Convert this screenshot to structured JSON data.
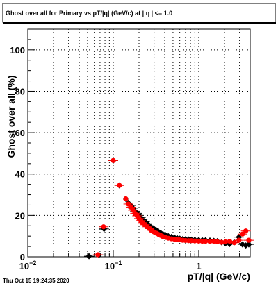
{
  "footer": {
    "timestamp": "Thu Oct 15 19:24:35 2020"
  },
  "chart_data": {
    "type": "scatter",
    "title": "Ghost over all for Primary vs pT/|q| (GeV/c) at |  η | <= 1.0",
    "xlabel": "pT/|q| (GeV/c)",
    "ylabel": "Ghost over all (%)",
    "x_scale": "log",
    "xlim": [
      0.01,
      4.0
    ],
    "ylim": [
      0,
      110
    ],
    "grid": true,
    "x_major_ticks": [
      {
        "value": 0.01,
        "label": "10",
        "sup": "−2"
      },
      {
        "value": 0.1,
        "label": "10",
        "sup": "−1"
      },
      {
        "value": 1,
        "label": "1",
        "sup": ""
      }
    ],
    "y_ticks": [
      0,
      20,
      40,
      60,
      80,
      100
    ],
    "series": [
      {
        "color": "#000000",
        "marker": "diamond",
        "points": [
          [
            0.052,
            0.3
          ],
          [
            0.068,
            0.9
          ],
          [
            0.078,
            13.5
          ],
          [
            0.1,
            46.5
          ],
          [
            0.118,
            34.5
          ],
          [
            0.14,
            28.0
          ],
          [
            0.15,
            26.0
          ],
          [
            0.16,
            24.8
          ],
          [
            0.17,
            23.5
          ],
          [
            0.18,
            22.0
          ],
          [
            0.19,
            21.0
          ],
          [
            0.2,
            20.0
          ],
          [
            0.21,
            19.0
          ],
          [
            0.22,
            18.0
          ],
          [
            0.235,
            17.0
          ],
          [
            0.25,
            16.0
          ],
          [
            0.265,
            15.0
          ],
          [
            0.28,
            14.2
          ],
          [
            0.3,
            13.5
          ],
          [
            0.32,
            12.8
          ],
          [
            0.34,
            12.0
          ],
          [
            0.36,
            11.5
          ],
          [
            0.38,
            11.0
          ],
          [
            0.41,
            10.5
          ],
          [
            0.44,
            10.0
          ],
          [
            0.48,
            9.6
          ],
          [
            0.52,
            9.3
          ],
          [
            0.56,
            9.0
          ],
          [
            0.6,
            8.8
          ],
          [
            0.65,
            8.6
          ],
          [
            0.7,
            8.5
          ],
          [
            0.76,
            8.4
          ],
          [
            0.82,
            8.3
          ],
          [
            0.9,
            8.2
          ],
          [
            1.0,
            8.1
          ],
          [
            1.1,
            8.0
          ],
          [
            1.2,
            8.0
          ],
          [
            1.35,
            7.9
          ],
          [
            1.5,
            7.7
          ],
          [
            1.65,
            7.6
          ],
          [
            1.85,
            7.0
          ],
          [
            2.05,
            6.5
          ],
          [
            2.3,
            6.2
          ],
          [
            2.6,
            7.0
          ],
          [
            2.95,
            9.5
          ],
          [
            3.25,
            6.0
          ],
          [
            3.55,
            5.5
          ],
          [
            3.85,
            6.0
          ]
        ]
      },
      {
        "color": "#ff0000",
        "marker": "circle",
        "points": [
          [
            0.066,
            1.0
          ],
          [
            0.077,
            14.5
          ],
          [
            0.1,
            46.5
          ],
          [
            0.118,
            34.5
          ],
          [
            0.14,
            28.0
          ],
          [
            0.15,
            25.5
          ],
          [
            0.16,
            24.0
          ],
          [
            0.17,
            22.5
          ],
          [
            0.18,
            21.0
          ],
          [
            0.19,
            19.8
          ],
          [
            0.2,
            18.5
          ],
          [
            0.21,
            17.5
          ],
          [
            0.22,
            16.5
          ],
          [
            0.235,
            15.5
          ],
          [
            0.25,
            14.5
          ],
          [
            0.265,
            13.6
          ],
          [
            0.28,
            12.8
          ],
          [
            0.3,
            12.0
          ],
          [
            0.32,
            11.4
          ],
          [
            0.34,
            10.8
          ],
          [
            0.36,
            10.3
          ],
          [
            0.38,
            9.8
          ],
          [
            0.41,
            9.4
          ],
          [
            0.44,
            9.0
          ],
          [
            0.48,
            8.7
          ],
          [
            0.52,
            8.5
          ],
          [
            0.56,
            8.3
          ],
          [
            0.6,
            8.2
          ],
          [
            0.65,
            8.0
          ],
          [
            0.7,
            7.9
          ],
          [
            0.76,
            7.8
          ],
          [
            0.82,
            7.8
          ],
          [
            0.9,
            7.7
          ],
          [
            1.0,
            7.6
          ],
          [
            1.1,
            7.5
          ],
          [
            1.2,
            7.5
          ],
          [
            1.35,
            7.4
          ],
          [
            1.5,
            7.5
          ],
          [
            1.65,
            7.3
          ],
          [
            1.85,
            7.0
          ],
          [
            2.05,
            7.2
          ],
          [
            2.3,
            7.5
          ],
          [
            2.6,
            6.8
          ],
          [
            2.95,
            8.0
          ],
          [
            3.25,
            11.0
          ],
          [
            3.55,
            12.5
          ],
          [
            3.85,
            8.0
          ]
        ]
      }
    ]
  }
}
